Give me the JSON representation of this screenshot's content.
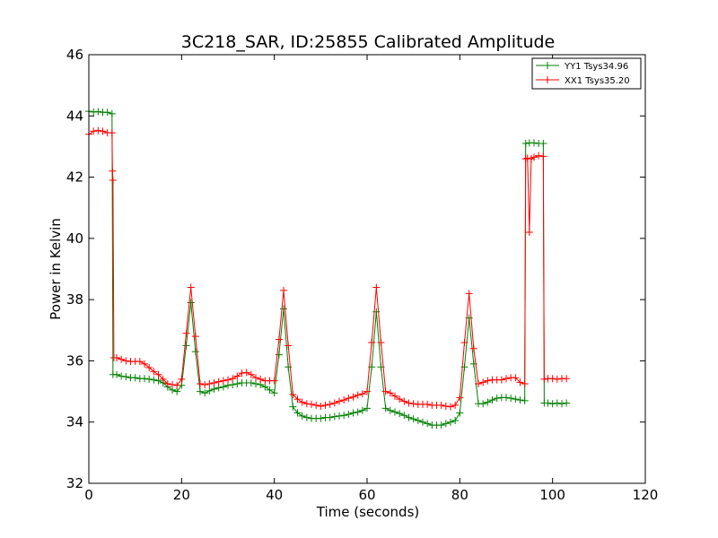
{
  "chart_data": {
    "type": "line",
    "title": "3C218_SAR, ID:25855 Calibrated Amplitude",
    "xlabel": "Time (seconds)",
    "ylabel": "Power in Kelvin",
    "xlim": [
      0,
      120
    ],
    "ylim": [
      32,
      46
    ],
    "xticks": [
      "0",
      "20",
      "40",
      "60",
      "80",
      "100",
      "120"
    ],
    "yticks": [
      "32",
      "34",
      "36",
      "38",
      "40",
      "42",
      "44",
      "46"
    ],
    "grid": false,
    "legend_position": "top-right",
    "series": [
      {
        "name": "YY1 Tsys34.96",
        "color": "#008000",
        "marker": "+",
        "points": [
          [
            0,
            44.15
          ],
          [
            1,
            44.13
          ],
          [
            2,
            44.14
          ],
          [
            3,
            44.12
          ],
          [
            4,
            44.12
          ],
          [
            5,
            44.07
          ],
          [
            5.2,
            35.55
          ],
          [
            6,
            35.55
          ],
          [
            7,
            35.5
          ],
          [
            8,
            35.48
          ],
          [
            9,
            35.45
          ],
          [
            10,
            35.45
          ],
          [
            11,
            35.42
          ],
          [
            12,
            35.42
          ],
          [
            13,
            35.4
          ],
          [
            14,
            35.38
          ],
          [
            15,
            35.35
          ],
          [
            16,
            35.28
          ],
          [
            17,
            35.15
          ],
          [
            18,
            35.05
          ],
          [
            19,
            35.0
          ],
          [
            20,
            35.2
          ],
          [
            21,
            36.5
          ],
          [
            22,
            37.9
          ],
          [
            23,
            36.3
          ],
          [
            24,
            35.0
          ],
          [
            25,
            34.95
          ],
          [
            26,
            35.02
          ],
          [
            27,
            35.08
          ],
          [
            28,
            35.12
          ],
          [
            29,
            35.15
          ],
          [
            30,
            35.2
          ],
          [
            31,
            35.22
          ],
          [
            32,
            35.25
          ],
          [
            33,
            35.28
          ],
          [
            34,
            35.28
          ],
          [
            35,
            35.28
          ],
          [
            36,
            35.25
          ],
          [
            37,
            35.22
          ],
          [
            38,
            35.15
          ],
          [
            39,
            35.05
          ],
          [
            40,
            34.95
          ],
          [
            41,
            36.2
          ],
          [
            42,
            37.7
          ],
          [
            43,
            35.8
          ],
          [
            44,
            34.5
          ],
          [
            45,
            34.3
          ],
          [
            46,
            34.2
          ],
          [
            47,
            34.15
          ],
          [
            48,
            34.12
          ],
          [
            49,
            34.12
          ],
          [
            50,
            34.12
          ],
          [
            51,
            34.15
          ],
          [
            52,
            34.15
          ],
          [
            53,
            34.18
          ],
          [
            54,
            34.2
          ],
          [
            55,
            34.22
          ],
          [
            56,
            34.25
          ],
          [
            57,
            34.3
          ],
          [
            58,
            34.33
          ],
          [
            59,
            34.38
          ],
          [
            60,
            34.45
          ],
          [
            61,
            35.8
          ],
          [
            62,
            37.6
          ],
          [
            63,
            35.8
          ],
          [
            64,
            34.45
          ],
          [
            65,
            34.38
          ],
          [
            66,
            34.33
          ],
          [
            67,
            34.28
          ],
          [
            68,
            34.22
          ],
          [
            69,
            34.15
          ],
          [
            70,
            34.1
          ],
          [
            71,
            34.05
          ],
          [
            72,
            34.0
          ],
          [
            73,
            33.95
          ],
          [
            74,
            33.9
          ],
          [
            75,
            33.9
          ],
          [
            76,
            33.9
          ],
          [
            77,
            33.95
          ],
          [
            78,
            34.0
          ],
          [
            79,
            34.05
          ],
          [
            80,
            34.3
          ],
          [
            81,
            35.8
          ],
          [
            82,
            37.4
          ],
          [
            83,
            35.9
          ],
          [
            84,
            34.6
          ],
          [
            85,
            34.6
          ],
          [
            86,
            34.65
          ],
          [
            87,
            34.72
          ],
          [
            88,
            34.78
          ],
          [
            89,
            34.8
          ],
          [
            90,
            34.8
          ],
          [
            91,
            34.78
          ],
          [
            92,
            34.75
          ],
          [
            93,
            34.72
          ],
          [
            94,
            34.7
          ],
          [
            94.2,
            43.1
          ],
          [
            95,
            43.12
          ],
          [
            96,
            43.12
          ],
          [
            97,
            43.1
          ],
          [
            98,
            43.1
          ],
          [
            98.2,
            34.62
          ],
          [
            99,
            34.62
          ],
          [
            100,
            34.6
          ],
          [
            101,
            34.62
          ],
          [
            102,
            34.6
          ],
          [
            103,
            34.62
          ]
        ]
      },
      {
        "name": "XX1 Tsys35.20",
        "color": "#ff0000",
        "marker": "+",
        "points": [
          [
            0,
            43.4
          ],
          [
            1,
            43.5
          ],
          [
            2,
            43.52
          ],
          [
            3,
            43.5
          ],
          [
            4,
            43.45
          ],
          [
            5,
            43.45
          ],
          [
            5.1,
            42.2
          ],
          [
            5.2,
            41.9
          ],
          [
            5.4,
            36.1
          ],
          [
            6,
            36.1
          ],
          [
            7,
            36.05
          ],
          [
            8,
            36.0
          ],
          [
            9,
            35.98
          ],
          [
            10,
            35.98
          ],
          [
            11,
            35.98
          ],
          [
            12,
            35.9
          ],
          [
            13,
            35.78
          ],
          [
            14,
            35.65
          ],
          [
            15,
            35.55
          ],
          [
            16,
            35.4
          ],
          [
            17,
            35.25
          ],
          [
            18,
            35.22
          ],
          [
            19,
            35.2
          ],
          [
            20,
            35.4
          ],
          [
            21,
            36.9
          ],
          [
            22,
            38.4
          ],
          [
            23,
            36.8
          ],
          [
            24,
            35.25
          ],
          [
            25,
            35.22
          ],
          [
            26,
            35.25
          ],
          [
            27,
            35.28
          ],
          [
            28,
            35.32
          ],
          [
            29,
            35.35
          ],
          [
            30,
            35.38
          ],
          [
            31,
            35.42
          ],
          [
            32,
            35.5
          ],
          [
            33,
            35.6
          ],
          [
            34,
            35.62
          ],
          [
            35,
            35.55
          ],
          [
            36,
            35.45
          ],
          [
            37,
            35.4
          ],
          [
            38,
            35.35
          ],
          [
            39,
            35.35
          ],
          [
            40,
            35.35
          ],
          [
            41,
            36.7
          ],
          [
            42,
            38.3
          ],
          [
            43,
            36.5
          ],
          [
            44,
            34.9
          ],
          [
            45,
            34.75
          ],
          [
            46,
            34.65
          ],
          [
            47,
            34.6
          ],
          [
            48,
            34.58
          ],
          [
            49,
            34.55
          ],
          [
            50,
            34.52
          ],
          [
            51,
            34.55
          ],
          [
            52,
            34.58
          ],
          [
            53,
            34.62
          ],
          [
            54,
            34.68
          ],
          [
            55,
            34.72
          ],
          [
            56,
            34.78
          ],
          [
            57,
            34.82
          ],
          [
            58,
            34.88
          ],
          [
            59,
            34.92
          ],
          [
            60,
            35.0
          ],
          [
            61,
            36.6
          ],
          [
            62,
            38.4
          ],
          [
            63,
            36.6
          ],
          [
            64,
            35.0
          ],
          [
            65,
            34.95
          ],
          [
            66,
            34.85
          ],
          [
            67,
            34.75
          ],
          [
            68,
            34.68
          ],
          [
            69,
            34.62
          ],
          [
            70,
            34.6
          ],
          [
            71,
            34.58
          ],
          [
            72,
            34.58
          ],
          [
            73,
            34.58
          ],
          [
            74,
            34.55
          ],
          [
            75,
            34.55
          ],
          [
            76,
            34.55
          ],
          [
            77,
            34.52
          ],
          [
            78,
            34.5
          ],
          [
            79,
            34.55
          ],
          [
            80,
            34.8
          ],
          [
            81,
            36.6
          ],
          [
            82,
            38.2
          ],
          [
            83,
            36.4
          ],
          [
            84,
            35.25
          ],
          [
            85,
            35.3
          ],
          [
            86,
            35.35
          ],
          [
            87,
            35.38
          ],
          [
            88,
            35.38
          ],
          [
            89,
            35.38
          ],
          [
            90,
            35.42
          ],
          [
            91,
            35.45
          ],
          [
            92,
            35.45
          ],
          [
            93,
            35.3
          ],
          [
            94,
            35.25
          ],
          [
            94.2,
            42.6
          ],
          [
            94.6,
            42.62
          ],
          [
            95,
            40.2
          ],
          [
            95.4,
            42.6
          ],
          [
            96,
            42.65
          ],
          [
            97,
            42.7
          ],
          [
            98,
            42.68
          ],
          [
            98.2,
            35.4
          ],
          [
            99,
            35.42
          ],
          [
            100,
            35.42
          ],
          [
            101,
            35.4
          ],
          [
            102,
            35.42
          ],
          [
            103,
            35.42
          ]
        ]
      }
    ]
  }
}
